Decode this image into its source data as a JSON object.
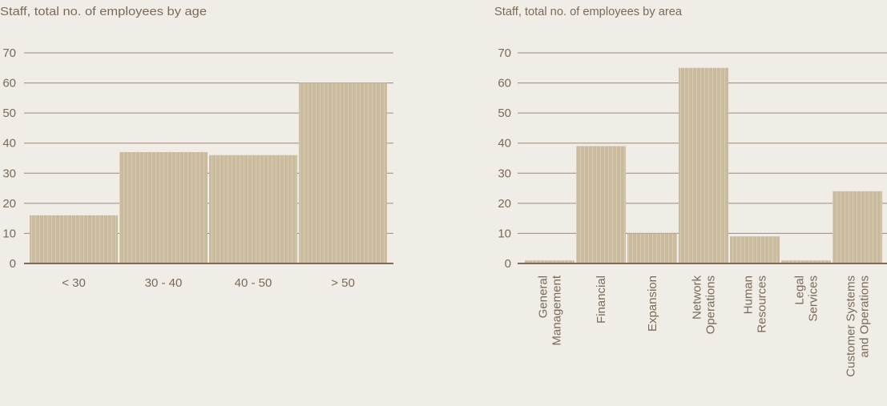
{
  "colors": {
    "background": "#efede6",
    "bar": "#cbbb9e",
    "grid": "#9c8c7c",
    "axis": "#7d6b5a",
    "text": "#7a6a5a"
  },
  "chart_data": [
    {
      "type": "bar",
      "title": "Staff, total no. of employees by age",
      "categories": [
        "< 30",
        "30 - 40",
        "40 - 50",
        "> 50"
      ],
      "values": [
        16,
        37,
        36,
        60
      ],
      "ylim": [
        0,
        70
      ],
      "yticks": [
        0,
        10,
        20,
        30,
        40,
        50,
        60,
        70
      ],
      "grid": true
    },
    {
      "type": "bar",
      "title": "Staff, total no. of employees by area",
      "categories": [
        [
          "General",
          "Management"
        ],
        [
          "Financial"
        ],
        [
          "Expansion"
        ],
        [
          "Network",
          "Operations"
        ],
        [
          "Human",
          "Resources"
        ],
        [
          "Legal",
          "Services"
        ],
        [
          "Customer Systems",
          "and Operations"
        ]
      ],
      "values": [
        1,
        39,
        10,
        65,
        9,
        1,
        24
      ],
      "ylim": [
        0,
        70
      ],
      "yticks": [
        0,
        10,
        20,
        30,
        40,
        50,
        60,
        70
      ],
      "grid": true
    }
  ]
}
